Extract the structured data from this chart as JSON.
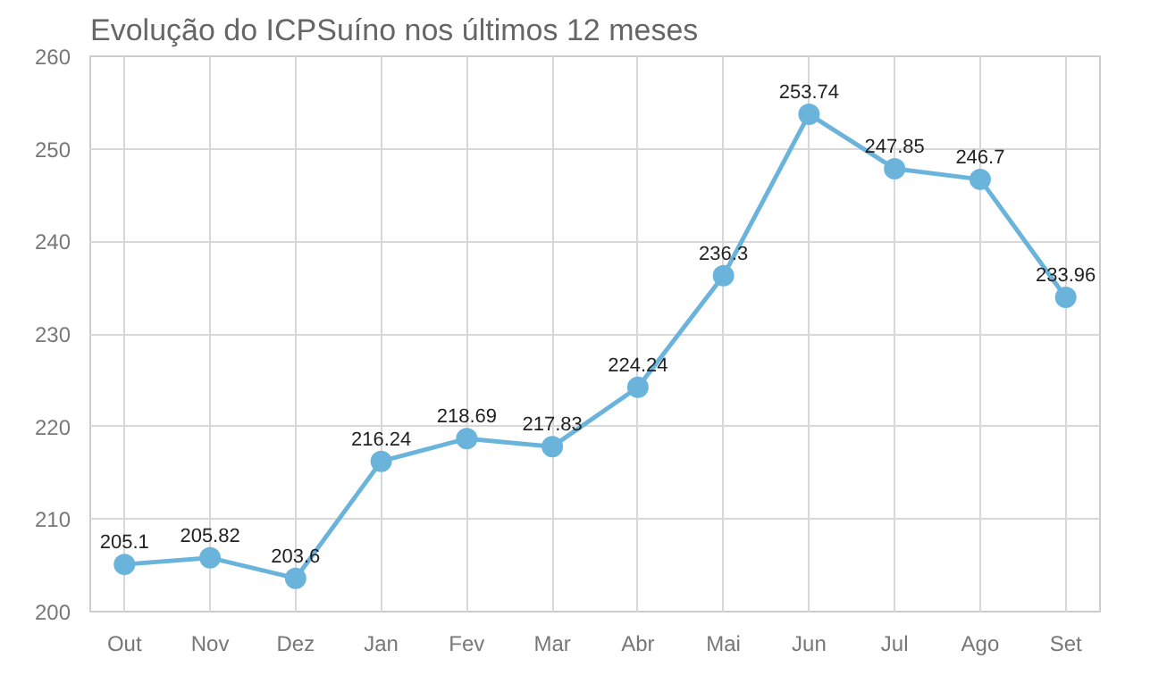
{
  "chart_data": {
    "type": "line",
    "title": "Evolução do ICPSuíno nos últimos 12 meses",
    "categories": [
      "Out",
      "Nov",
      "Dez",
      "Jan",
      "Fev",
      "Mar",
      "Abr",
      "Mai",
      "Jun",
      "Jul",
      "Ago",
      "Set"
    ],
    "series": [
      {
        "color": "#6ab4dc",
        "values": [
          205.1,
          205.82,
          203.6,
          216.24,
          218.69,
          217.83,
          224.24,
          236.3,
          253.74,
          247.85,
          246.7,
          233.96
        ]
      }
    ],
    "ylim": [
      200,
      260
    ],
    "yticks": [
      200,
      210,
      220,
      230,
      240,
      250,
      260
    ],
    "grid": true,
    "marker": "circle",
    "line_style": "solid",
    "data_labels": true
  }
}
